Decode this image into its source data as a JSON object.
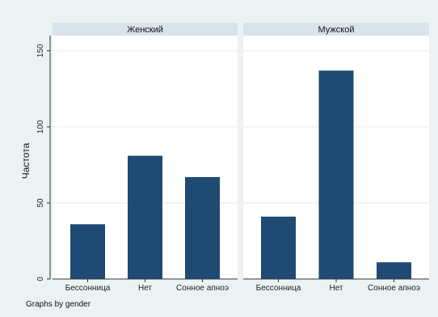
{
  "chart_data": {
    "type": "bar",
    "ylabel": "Частота",
    "ylim": [
      0,
      160
    ],
    "yticks": [
      0,
      50,
      100,
      150
    ],
    "grid": true,
    "categories": [
      "Бессонница",
      "Нет",
      "Сонное апноэ"
    ],
    "panels": [
      {
        "title": "Женский",
        "values": [
          36,
          81,
          67
        ]
      },
      {
        "title": "Мужской",
        "values": [
          41,
          137,
          11
        ]
      }
    ],
    "note": "Graphs by gender",
    "colors": {
      "bar": "#1f4a73",
      "panel_header": "#d9e3ea",
      "outer_bg": "#eaf2f3",
      "plot_bg": "#ffffff",
      "grid": "#eaeaea"
    }
  }
}
